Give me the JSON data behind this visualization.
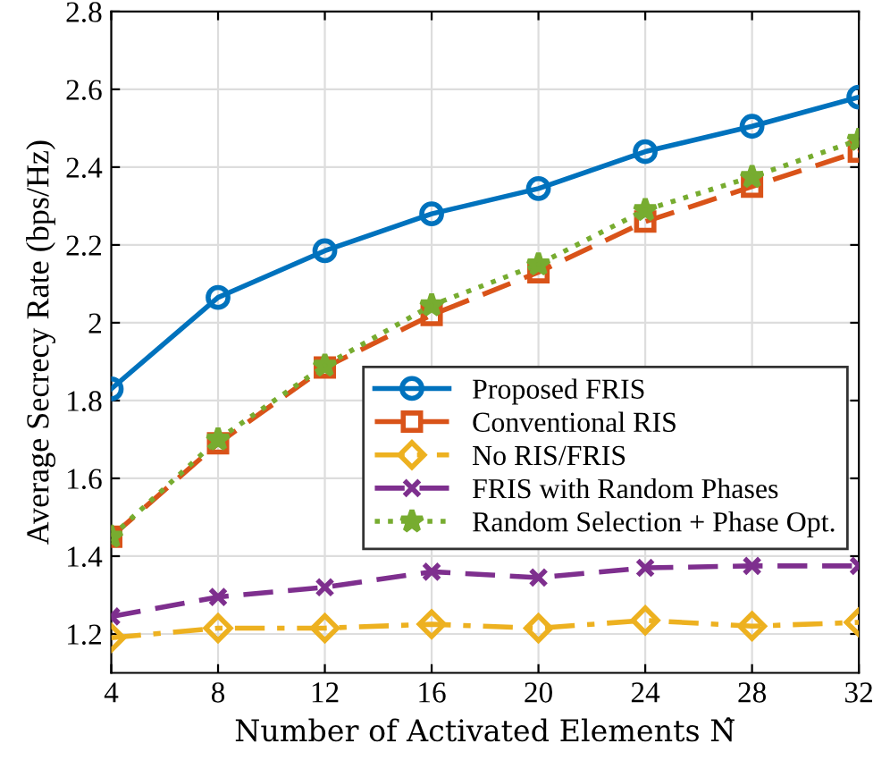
{
  "chart_data": {
    "type": "line",
    "xlabel": "Number of Activated Elements N̂",
    "ylabel": "Average Secrecy Rate (bps/Hz)",
    "x": [
      4,
      8,
      12,
      16,
      20,
      24,
      28,
      32
    ],
    "series": [
      {
        "name": "Proposed FRIS",
        "color": "#0072bd",
        "marker": "circle",
        "line_style": "solid",
        "values": [
          1.83,
          2.065,
          2.185,
          2.28,
          2.345,
          2.44,
          2.505,
          2.58
        ]
      },
      {
        "name": "Conventional RIS",
        "color": "#d95319",
        "marker": "square",
        "line_style": "dashed",
        "values": [
          1.45,
          1.69,
          1.885,
          2.02,
          2.13,
          2.26,
          2.35,
          2.44
        ]
      },
      {
        "name": "No RIS/FRIS",
        "color": "#edb120",
        "marker": "diamond",
        "line_style": "dashdot",
        "values": [
          1.19,
          1.215,
          1.215,
          1.225,
          1.215,
          1.235,
          1.22,
          1.23
        ]
      },
      {
        "name": "FRIS with Random Phases",
        "color": "#7e2f8e",
        "marker": "cross",
        "line_style": "dashed",
        "values": [
          1.245,
          1.295,
          1.32,
          1.36,
          1.345,
          1.37,
          1.375,
          1.375
        ]
      },
      {
        "name": "Random Selection + Phase Opt.",
        "color": "#77ac30",
        "marker": "star",
        "line_style": "dotted",
        "values": [
          1.45,
          1.7,
          1.89,
          2.045,
          2.15,
          2.29,
          2.375,
          2.47
        ]
      }
    ],
    "xlim": [
      4,
      32
    ],
    "ylim": [
      1.1,
      2.8
    ],
    "xticks": [
      4,
      8,
      12,
      16,
      20,
      24,
      28,
      32
    ],
    "yticks": [
      1.2,
      1.4,
      1.6,
      1.8,
      2,
      2.2,
      2.4,
      2.6,
      2.8
    ],
    "grid": true,
    "legend": "right"
  }
}
